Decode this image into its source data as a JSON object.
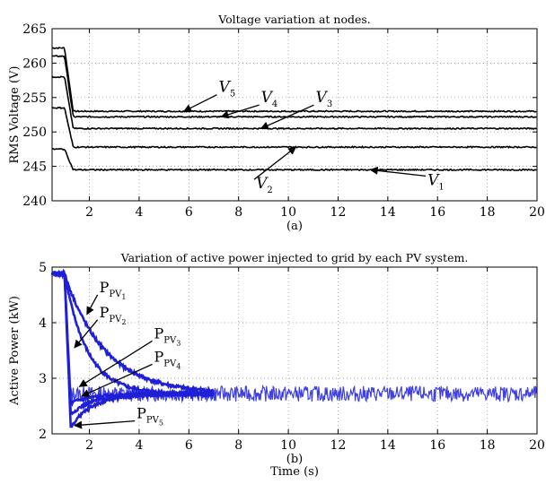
{
  "chart_data": [
    {
      "type": "line",
      "title": "Voltage variation at nodes.",
      "panel_caption": "(a)",
      "xlabel": "",
      "ylabel": "RMS Voltage (V)",
      "xlim": [
        0.5,
        20
      ],
      "ylim": [
        240,
        265
      ],
      "xticks": [
        2,
        4,
        6,
        8,
        10,
        12,
        14,
        16,
        18,
        20
      ],
      "yticks": [
        240,
        245,
        250,
        255,
        260,
        265
      ],
      "grid": "dotted",
      "line_color": "#000000",
      "series": [
        {
          "name": "V5",
          "start": 262.2,
          "end": 253.0
        },
        {
          "name": "V4",
          "start": 261.0,
          "end": 252.2
        },
        {
          "name": "V3",
          "start": 258.0,
          "end": 250.5
        },
        {
          "name": "V2",
          "start": 253.5,
          "end": 247.8
        },
        {
          "name": "V1",
          "start": 247.5,
          "end": 244.5
        }
      ],
      "annotations": [
        {
          "label": "V",
          "sub": "5",
          "x": 7.2,
          "y": 255.8,
          "to_x": 5.8,
          "to_y": 253.0
        },
        {
          "label": "V",
          "sub": "4",
          "x": 8.9,
          "y": 254.3,
          "to_x": 7.3,
          "to_y": 252.2
        },
        {
          "label": "V",
          "sub": "3",
          "x": 11.1,
          "y": 254.3,
          "to_x": 8.9,
          "to_y": 250.5
        },
        {
          "label": "V",
          "sub": "2",
          "x": 8.7,
          "y": 241.8,
          "to_x": 10.3,
          "to_y": 247.8
        },
        {
          "label": "V",
          "sub": "1",
          "x": 15.6,
          "y": 242.3,
          "to_x": 13.3,
          "to_y": 244.5
        }
      ]
    },
    {
      "type": "line",
      "title": "Variation of active power injected to grid by each PV system.",
      "panel_caption": "(b)",
      "xlabel": "Time (s)",
      "ylabel": "Active Power (kW)",
      "xlim": [
        0.5,
        20
      ],
      "ylim": [
        2,
        5
      ],
      "xticks": [
        2,
        4,
        6,
        8,
        10,
        12,
        14,
        16,
        18,
        20
      ],
      "yticks": [
        2,
        3,
        4,
        5
      ],
      "grid": "dotted",
      "line_color": "#1f1fd8",
      "initial": 4.88,
      "steady": 2.72,
      "series": [
        {
          "name": "PPV1",
          "min": 2.72,
          "decay_s": 1.6
        },
        {
          "name": "PPV2",
          "min": 2.72,
          "decay_s": 0.9
        },
        {
          "name": "PPV3",
          "min": 2.55,
          "decay_s": 0.45
        },
        {
          "name": "PPV4",
          "min": 2.35,
          "decay_s": 0.3
        },
        {
          "name": "PPV5",
          "min": 2.12,
          "decay_s": 0.25
        }
      ],
      "annotations": [
        {
          "label": "P",
          "sub": "PV",
          "sub2": "1",
          "x": 2.4,
          "y": 4.55,
          "to_x": 1.9,
          "to_y": 4.15
        },
        {
          "label": "P",
          "sub": "PV",
          "sub2": "2",
          "x": 2.4,
          "y": 4.1,
          "to_x": 1.4,
          "to_y": 3.55
        },
        {
          "label": "P",
          "sub": "PV",
          "sub2": "3",
          "x": 4.6,
          "y": 3.72,
          "to_x": 1.6,
          "to_y": 2.85
        },
        {
          "label": "P",
          "sub": "PV",
          "sub2": "4",
          "x": 4.6,
          "y": 3.3,
          "to_x": 1.7,
          "to_y": 2.68
        },
        {
          "label": "P",
          "sub": "PV",
          "sub2": "5",
          "x": 3.9,
          "y": 2.28,
          "to_x": 1.4,
          "to_y": 2.15
        }
      ]
    }
  ]
}
